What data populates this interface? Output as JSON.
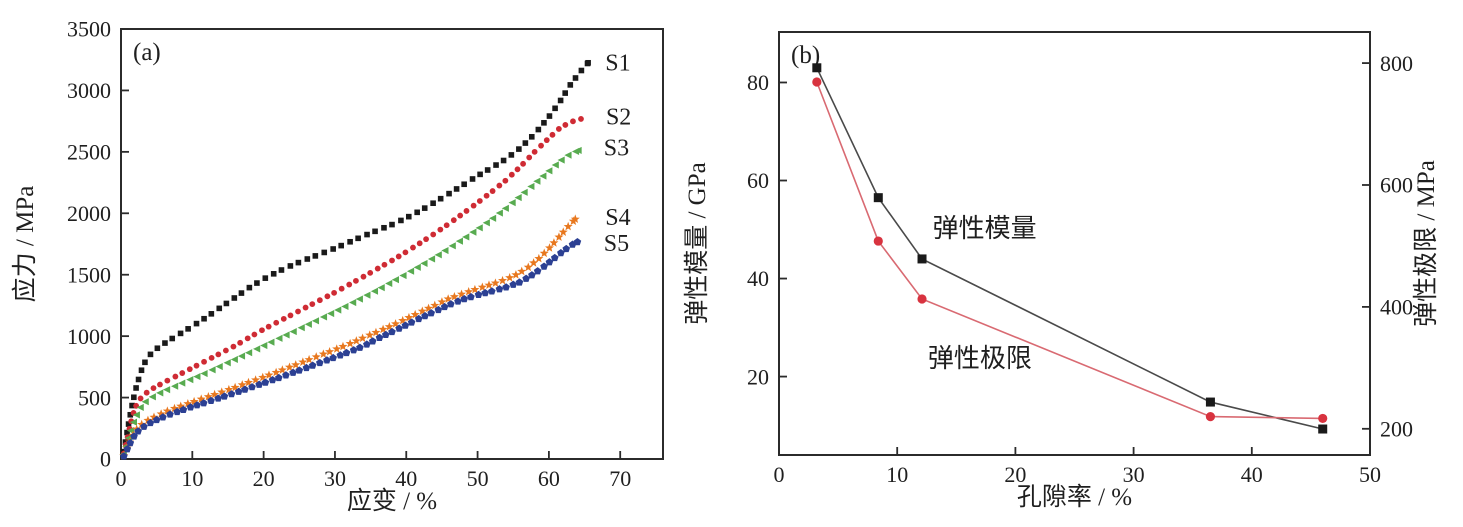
{
  "figure": {
    "background": "#ffffff",
    "text_color": "#1f1f1f",
    "frame_color": "#2b2b2b"
  },
  "chart_data": [
    {
      "id": "a",
      "type": "scatter",
      "panel_label": "(a)",
      "xlabel": "应变 / %",
      "ylabel": "应力 / MPa",
      "xlim": [
        0,
        76
      ],
      "ylim": [
        0,
        3500
      ],
      "xticks": [
        0,
        10,
        20,
        30,
        40,
        50,
        60,
        70
      ],
      "yticks": [
        0,
        500,
        1000,
        1500,
        2000,
        2500,
        3000,
        3500
      ],
      "grid": false,
      "legend_position": "right-inside-labels",
      "series": [
        {
          "name": "S1",
          "marker": "square",
          "color": "#1a1a1a",
          "marker_size": 5.6,
          "marker_step": 9.2,
          "label_x": 67.9,
          "label_y": 3230,
          "points": [
            [
              0.4,
              60
            ],
            [
              0.8,
              200
            ],
            [
              1.2,
              330
            ],
            [
              1.6,
              450
            ],
            [
              2,
              555
            ],
            [
              2.5,
              655
            ],
            [
              3,
              745
            ],
            [
              3.6,
              815
            ],
            [
              4.4,
              870
            ],
            [
              5.4,
              915
            ],
            [
              6.6,
              960
            ],
            [
              8,
              1010
            ],
            [
              10,
              1080
            ],
            [
              12,
              1155
            ],
            [
              14,
              1235
            ],
            [
              16,
              1315
            ],
            [
              18,
              1395
            ],
            [
              20,
              1465
            ],
            [
              22,
              1525
            ],
            [
              24,
              1578
            ],
            [
              26,
              1625
            ],
            [
              28,
              1670
            ],
            [
              30,
              1715
            ],
            [
              32,
              1765
            ],
            [
              34,
              1815
            ],
            [
              36,
              1862
            ],
            [
              38,
              1908
            ],
            [
              40,
              1962
            ],
            [
              42,
              2022
            ],
            [
              44,
              2090
            ],
            [
              46,
              2160
            ],
            [
              48,
              2232
            ],
            [
              50,
              2305
            ],
            [
              52,
              2372
            ],
            [
              54,
              2442
            ],
            [
              56,
              2532
            ],
            [
              58,
              2645
            ],
            [
              60,
              2785
            ],
            [
              61.5,
              2905
            ],
            [
              63,
              3045
            ],
            [
              64.3,
              3145
            ],
            [
              65.5,
              3225
            ]
          ]
        },
        {
          "name": "S2",
          "marker": "circle",
          "color": "#cf2b34",
          "marker_size": 5.8,
          "marker_step": 8.2,
          "label_x": 68.0,
          "label_y": 2790,
          "points": [
            [
              0.4,
              45
            ],
            [
              0.9,
              170
            ],
            [
              1.4,
              300
            ],
            [
              1.9,
              405
            ],
            [
              2.4,
              468
            ],
            [
              3,
              512
            ],
            [
              4,
              558
            ],
            [
              5,
              592
            ],
            [
              6.5,
              638
            ],
            [
              8,
              682
            ],
            [
              10,
              742
            ],
            [
              12,
              802
            ],
            [
              14,
              862
            ],
            [
              16,
              922
            ],
            [
              18,
              990
            ],
            [
              20,
              1056
            ],
            [
              22,
              1116
            ],
            [
              24,
              1176
            ],
            [
              26,
              1236
            ],
            [
              28,
              1296
            ],
            [
              30,
              1356
            ],
            [
              32,
              1420
            ],
            [
              34,
              1484
            ],
            [
              36,
              1550
            ],
            [
              38,
              1616
            ],
            [
              40,
              1686
            ],
            [
              42,
              1760
            ],
            [
              44,
              1836
            ],
            [
              46,
              1916
            ],
            [
              48,
              2000
            ],
            [
              50,
              2086
            ],
            [
              52,
              2176
            ],
            [
              54,
              2270
            ],
            [
              56,
              2380
            ],
            [
              58,
              2500
            ],
            [
              60,
              2612
            ],
            [
              61.5,
              2692
            ],
            [
              63,
              2742
            ],
            [
              64.5,
              2768
            ]
          ]
        },
        {
          "name": "S3",
          "marker": "triangle-left",
          "color": "#58ab50",
          "marker_size": 7.5,
          "marker_step": 8.2,
          "label_x": 67.7,
          "label_y": 2537,
          "points": [
            [
              0.4,
              38
            ],
            [
              1,
              140
            ],
            [
              1.6,
              262
            ],
            [
              2.2,
              352
            ],
            [
              2.8,
              420
            ],
            [
              3.5,
              466
            ],
            [
              4.5,
              506
            ],
            [
              6,
              552
            ],
            [
              8,
              602
            ],
            [
              10,
              652
            ],
            [
              12,
              702
            ],
            [
              14,
              756
            ],
            [
              16,
              810
            ],
            [
              18,
              865
            ],
            [
              20,
              920
            ],
            [
              22,
              975
            ],
            [
              24,
              1030
            ],
            [
              26,
              1086
            ],
            [
              28,
              1142
            ],
            [
              30,
              1198
            ],
            [
              32,
              1256
            ],
            [
              34,
              1316
            ],
            [
              36,
              1376
            ],
            [
              38,
              1440
            ],
            [
              40,
              1505
            ],
            [
              42,
              1572
            ],
            [
              44,
              1640
            ],
            [
              46,
              1714
            ],
            [
              48,
              1790
            ],
            [
              50,
              1868
            ],
            [
              52,
              1950
            ],
            [
              54,
              2040
            ],
            [
              56,
              2138
            ],
            [
              58,
              2240
            ],
            [
              60,
              2340
            ],
            [
              61.5,
              2420
            ],
            [
              63,
              2482
            ],
            [
              64.2,
              2512
            ]
          ]
        },
        {
          "name": "S4",
          "marker": "star",
          "color": "#e8781f",
          "marker_size": 9.5,
          "marker_step": 7.2,
          "label_x": 67.9,
          "label_y": 1974,
          "points": [
            [
              0.4,
              28
            ],
            [
              1,
              110
            ],
            [
              1.6,
              186
            ],
            [
              2.2,
              242
            ],
            [
              3,
              286
            ],
            [
              4,
              322
            ],
            [
              5,
              350
            ],
            [
              6.5,
              390
            ],
            [
              8,
              422
            ],
            [
              10,
              462
            ],
            [
              12,
              502
            ],
            [
              14,
              542
            ],
            [
              16,
              582
            ],
            [
              18,
              625
            ],
            [
              20,
              666
            ],
            [
              22,
              710
            ],
            [
              24,
              755
            ],
            [
              26,
              800
            ],
            [
              28,
              845
            ],
            [
              30,
              890
            ],
            [
              32,
              936
            ],
            [
              34,
              986
            ],
            [
              36,
              1036
            ],
            [
              38,
              1086
            ],
            [
              40,
              1140
            ],
            [
              42,
              1196
            ],
            [
              44,
              1250
            ],
            [
              46,
              1306
            ],
            [
              48,
              1346
            ],
            [
              50,
              1386
            ],
            [
              52,
              1422
            ],
            [
              54,
              1462
            ],
            [
              55.5,
              1502
            ],
            [
              57,
              1556
            ],
            [
              58.5,
              1626
            ],
            [
              60,
              1712
            ],
            [
              61.5,
              1812
            ],
            [
              62.7,
              1892
            ],
            [
              63.7,
              1952
            ]
          ]
        },
        {
          "name": "S5",
          "marker": "pentagon",
          "color": "#2c4093",
          "marker_size": 8,
          "marker_step": 7.2,
          "label_x": 67.7,
          "label_y": 1762,
          "points": [
            [
              0.4,
              22
            ],
            [
              1,
              95
            ],
            [
              1.6,
              165
            ],
            [
              2.2,
              216
            ],
            [
              3,
              256
            ],
            [
              4,
              290
            ],
            [
              5,
              318
            ],
            [
              6.5,
              356
            ],
            [
              8,
              386
            ],
            [
              10,
              426
            ],
            [
              12,
              462
            ],
            [
              14,
              500
            ],
            [
              16,
              538
            ],
            [
              18,
              578
            ],
            [
              20,
              618
            ],
            [
              22,
              658
            ],
            [
              24,
              700
            ],
            [
              26,
              742
            ],
            [
              28,
              785
            ],
            [
              30,
              828
            ],
            [
              32,
              872
            ],
            [
              34,
              918
            ],
            [
              36,
              980
            ],
            [
              38,
              1035
            ],
            [
              40,
              1090
            ],
            [
              42,
              1148
            ],
            [
              44,
              1200
            ],
            [
              46,
              1255
            ],
            [
              48,
              1300
            ],
            [
              50,
              1335
            ],
            [
              52,
              1365
            ],
            [
              54,
              1398
            ],
            [
              56,
              1440
            ],
            [
              57.5,
              1492
            ],
            [
              59,
              1552
            ],
            [
              60.5,
              1622
            ],
            [
              62,
              1692
            ],
            [
              63.2,
              1742
            ],
            [
              64,
              1766
            ]
          ]
        }
      ]
    },
    {
      "id": "b",
      "type": "line",
      "panel_label": "(b)",
      "xlabel": "孔隙率 / %",
      "ylabel_left": "弹性模量 / GPa",
      "ylabel_right": "弹性极限 / MPa",
      "xlim": [
        0,
        50
      ],
      "ylim_left": [
        4,
        90.3
      ],
      "ylim_right": [
        157,
        851
      ],
      "xticks": [
        0,
        10,
        20,
        30,
        40,
        50
      ],
      "yticks_left": [
        20,
        40,
        60,
        80
      ],
      "yticks_right": [
        200,
        400,
        600,
        800
      ],
      "grid": false,
      "x": [
        3.2,
        8.4,
        12.1,
        36.5,
        46
      ],
      "series": [
        {
          "name": "弹性模量",
          "axis": "left",
          "marker": "square",
          "marker_color": "#1a1a1a",
          "line_color": "#4a4a4a",
          "marker_size": 9,
          "values": [
            83,
            56.5,
            44,
            14.8,
            9.3
          ],
          "annotation": {
            "text": "弹性模量",
            "x": 13.0,
            "y_left": 50.3
          }
        },
        {
          "name": "弹性极限",
          "axis": "right",
          "marker": "circle",
          "marker_color": "#d8333f",
          "line_color": "#d96a72",
          "marker_size": 9.2,
          "values": [
            769,
            508,
            413,
            220,
            217
          ],
          "annotation": {
            "text": "弹性极限",
            "x": 12.6,
            "y_left": 23.8
          }
        }
      ]
    }
  ]
}
